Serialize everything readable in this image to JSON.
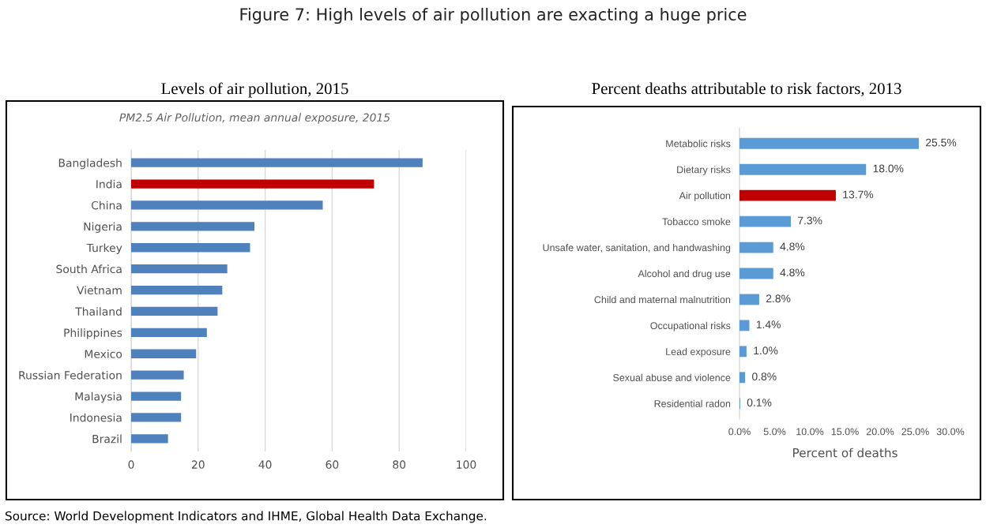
{
  "chart_data": [
    {
      "type": "bar",
      "orientation": "horizontal",
      "title": "Levels of air pollution, 2015",
      "subtitle": "PM2.5 Air Pollution, mean annual exposure, 2015",
      "categories": [
        "Bangladesh",
        "India",
        "China",
        "Nigeria",
        "Turkey",
        "South Africa",
        "Vietnam",
        "Thailand",
        "Philippines",
        "Mexico",
        "Russian Federation",
        "Malaysia",
        "Indonesia",
        "Brazil"
      ],
      "values": [
        87.0,
        72.5,
        57.2,
        36.8,
        35.5,
        28.7,
        27.2,
        25.8,
        22.6,
        19.4,
        15.7,
        14.9,
        14.9,
        11.0
      ],
      "colors": [
        "#4f81bd",
        "#c00000",
        "#4f81bd",
        "#4f81bd",
        "#4f81bd",
        "#4f81bd",
        "#4f81bd",
        "#4f81bd",
        "#4f81bd",
        "#4f81bd",
        "#4f81bd",
        "#4f81bd",
        "#4f81bd",
        "#4f81bd"
      ],
      "xlim": [
        0,
        100
      ],
      "xticks": [
        0,
        20,
        40,
        60,
        80,
        100
      ],
      "grid": "x",
      "annotations": [
        "Figure 7: High levels of air pollution are exacting a huge price",
        "Source: World Development Indicators and IHME, Global Health Data Exchange."
      ]
    },
    {
      "type": "bar",
      "orientation": "horizontal",
      "title": "Percent deaths attributable to risk factors, 2013",
      "xlabel": "Percent of deaths",
      "categories": [
        "Metabolic risks",
        "Dietary risks",
        "Air pollution",
        "Tobacco smoke",
        "Unsafe water, sanitation, and handwashing",
        "Alcohol and drug use",
        "Child and maternal malnutrition",
        "Occupational risks",
        "Lead exposure",
        "Sexual abuse and violence",
        "Residential radon"
      ],
      "values": [
        25.5,
        18.0,
        13.7,
        7.3,
        4.8,
        4.8,
        2.8,
        1.4,
        1.0,
        0.8,
        0.1
      ],
      "value_labels": [
        "25.5%",
        "18.0%",
        "13.7%",
        "7.3%",
        "4.8%",
        "4.8%",
        "2.8%",
        "1.4%",
        "1.0%",
        "0.8%",
        "0.1%"
      ],
      "colors": [
        "#5b9bd5",
        "#5b9bd5",
        "#c00000",
        "#5b9bd5",
        "#5b9bd5",
        "#5b9bd5",
        "#5b9bd5",
        "#5b9bd5",
        "#5b9bd5",
        "#5b9bd5",
        "#5b9bd5"
      ],
      "xlim": [
        0,
        30
      ],
      "xticks": [
        {
          "value": 0,
          "label": "0.0%"
        },
        {
          "value": 5,
          "label": "5.0%"
        },
        {
          "value": 10,
          "label": "10.0%"
        },
        {
          "value": 15,
          "label": "15.0%"
        },
        {
          "value": 20,
          "label": "20.0%"
        },
        {
          "value": 25,
          "label": "25.0%"
        },
        {
          "value": 30,
          "label": "30.0%"
        }
      ]
    }
  ]
}
